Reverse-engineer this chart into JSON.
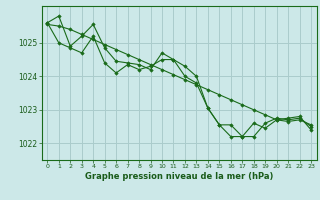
{
  "bg_color": "#cce8e8",
  "grid_color": "#aacccc",
  "line_color": "#1a6b1a",
  "marker_color": "#1a6b1a",
  "title": "Graphe pression niveau de la mer (hPa)",
  "ylim": [
    1021.5,
    1026.1
  ],
  "xlim": [
    -0.5,
    23.5
  ],
  "yticks": [
    1022,
    1023,
    1024,
    1025
  ],
  "xticks": [
    0,
    1,
    2,
    3,
    4,
    5,
    6,
    7,
    8,
    9,
    10,
    11,
    12,
    13,
    14,
    15,
    16,
    17,
    18,
    19,
    20,
    21,
    22,
    23
  ],
  "series": [
    {
      "x": [
        0,
        1,
        2,
        3,
        4,
        5,
        6,
        7,
        8,
        9,
        10,
        11,
        12,
        13,
        14,
        15,
        16,
        17,
        18,
        19,
        20,
        21,
        22,
        23
      ],
      "y": [
        1025.6,
        1025.8,
        1024.9,
        1025.2,
        1025.55,
        1024.85,
        1024.45,
        1024.4,
        1024.35,
        1024.2,
        1024.7,
        1024.5,
        1024.3,
        1024.0,
        1023.05,
        1022.55,
        1022.55,
        1022.2,
        1022.2,
        1022.6,
        1022.75,
        1022.7,
        1022.75,
        1022.5
      ]
    },
    {
      "x": [
        0,
        1,
        2,
        3,
        4,
        5,
        6,
        7,
        8,
        9,
        10,
        11,
        12,
        13,
        14,
        15,
        16,
        17,
        18,
        19,
        20,
        21,
        22,
        23
      ],
      "y": [
        1025.6,
        1025.0,
        1024.85,
        1024.7,
        1025.2,
        1024.4,
        1024.1,
        1024.35,
        1024.2,
        1024.3,
        1024.5,
        1024.5,
        1024.0,
        1023.8,
        1023.05,
        1022.55,
        1022.2,
        1022.2,
        1022.6,
        1022.45,
        1022.7,
        1022.75,
        1022.8,
        1022.4
      ]
    },
    {
      "x": [
        0,
        1,
        2,
        3,
        4,
        5,
        6,
        7,
        8,
        9,
        10,
        11,
        12,
        13,
        14,
        15,
        16,
        17,
        18,
        19,
        20,
        21,
        22,
        23
      ],
      "y": [
        1025.55,
        1025.5,
        1025.4,
        1025.25,
        1025.1,
        1024.95,
        1024.8,
        1024.65,
        1024.5,
        1024.35,
        1024.2,
        1024.05,
        1023.9,
        1023.75,
        1023.6,
        1023.45,
        1023.3,
        1023.15,
        1023.0,
        1022.85,
        1022.7,
        1022.65,
        1022.7,
        1022.55
      ]
    }
  ]
}
